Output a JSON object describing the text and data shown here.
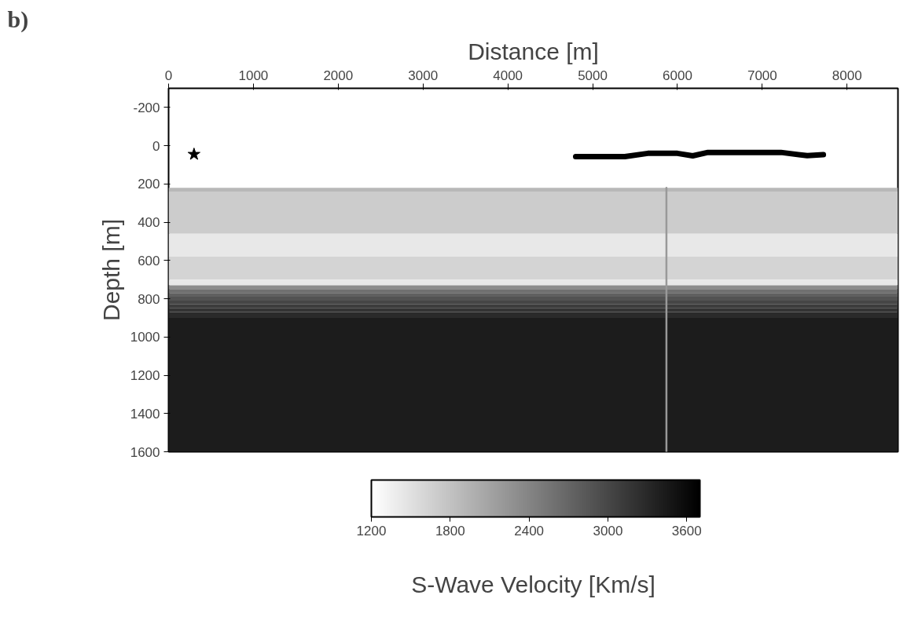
{
  "chart_data": {
    "type": "line",
    "title": "b)",
    "xlabel": "Distance [m]",
    "ylabel": "Depth [m]",
    "clabel": "S-Wave Velocity [Km/s]",
    "xlim": [
      0,
      8600
    ],
    "xticks": [
      0,
      1000,
      2000,
      3000,
      4000,
      5000,
      6000,
      7000,
      8000
    ],
    "ylim": [
      1600,
      -300
    ],
    "yticks": [
      -200,
      0,
      200,
      400,
      600,
      800,
      1000,
      1200,
      1400,
      1600
    ],
    "clim": [
      1200,
      3700
    ],
    "cticks": [
      1200,
      1800,
      2400,
      3000,
      3600
    ],
    "bands": [
      {
        "axis": "y",
        "from": 220,
        "to": 240,
        "color": "#b8b8b8"
      },
      {
        "axis": "y",
        "from": 240,
        "to": 460,
        "color": "#cccccc"
      },
      {
        "axis": "y",
        "from": 460,
        "to": 580,
        "color": "#e8e8e8"
      },
      {
        "axis": "y",
        "from": 580,
        "to": 700,
        "color": "#d4d4d4"
      },
      {
        "axis": "y",
        "from": 700,
        "to": 730,
        "color": "#e8e8e8"
      },
      {
        "axis": "y",
        "from": 730,
        "to": 750,
        "color": "#8c8c8c"
      },
      {
        "axis": "y",
        "from": 750,
        "to": 770,
        "color": "#707070"
      },
      {
        "axis": "y",
        "from": 770,
        "to": 790,
        "color": "#606060"
      },
      {
        "axis": "y",
        "from": 790,
        "to": 810,
        "color": "#525252"
      },
      {
        "axis": "y",
        "from": 810,
        "to": 830,
        "color": "#464646"
      },
      {
        "axis": "y",
        "from": 830,
        "to": 850,
        "color": "#3c3c3c"
      },
      {
        "axis": "y",
        "from": 850,
        "to": 870,
        "color": "#333333"
      },
      {
        "axis": "y",
        "from": 870,
        "to": 900,
        "color": "#2a2a2a"
      },
      {
        "axis": "y",
        "from": 900,
        "to": 1600,
        "color": "#1c1c1c"
      }
    ],
    "series": [
      {
        "color": "#999999",
        "x": [
          5870,
          5870
        ],
        "values": [
          220,
          1600
        ]
      },
      {
        "color": "#000000",
        "x": [
          4800,
          5380,
          5650,
          6000,
          6180,
          6360,
          7220,
          7530,
          7720
        ],
        "values": [
          57,
          57,
          40,
          40,
          53,
          35,
          35,
          52,
          47
        ]
      },
      {
        "type": "scatter",
        "marker": "star",
        "color": "#000000",
        "x": [
          300
        ],
        "values": [
          45
        ]
      }
    ]
  }
}
